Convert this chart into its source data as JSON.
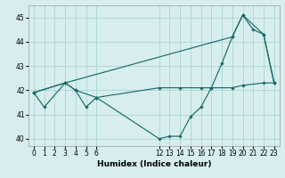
{
  "background_color": "#d8eeee",
  "grid_color": "#a8d4d4",
  "line_color": "#1a6b6b",
  "ylim": [
    39.7,
    45.5
  ],
  "xlim": [
    -0.5,
    23.5
  ],
  "yticks": [
    40,
    41,
    42,
    43,
    44,
    45
  ],
  "xticks": [
    0,
    1,
    2,
    3,
    4,
    5,
    6,
    12,
    13,
    14,
    15,
    16,
    17,
    18,
    19,
    20,
    21,
    22,
    23
  ],
  "xlabel": "Humidex (Indice chaleur)",
  "series": [
    {
      "x": [
        0,
        1,
        3,
        4,
        5,
        6,
        12,
        13,
        14,
        15,
        16,
        17,
        18,
        19,
        20,
        21,
        22,
        23
      ],
      "y": [
        41.9,
        41.3,
        42.3,
        42.0,
        41.3,
        41.7,
        40.0,
        40.1,
        40.1,
        40.9,
        41.3,
        42.1,
        43.1,
        44.2,
        45.1,
        44.5,
        44.3,
        42.3
      ]
    },
    {
      "x": [
        0,
        3,
        19,
        20,
        22,
        23
      ],
      "y": [
        41.9,
        42.3,
        44.2,
        45.1,
        44.3,
        42.3
      ]
    },
    {
      "x": [
        0,
        3,
        4,
        6,
        12,
        14,
        16,
        17,
        19,
        20,
        22,
        23
      ],
      "y": [
        41.9,
        42.3,
        42.0,
        41.7,
        42.1,
        42.1,
        42.1,
        42.1,
        42.1,
        42.2,
        42.3,
        42.3
      ]
    }
  ]
}
